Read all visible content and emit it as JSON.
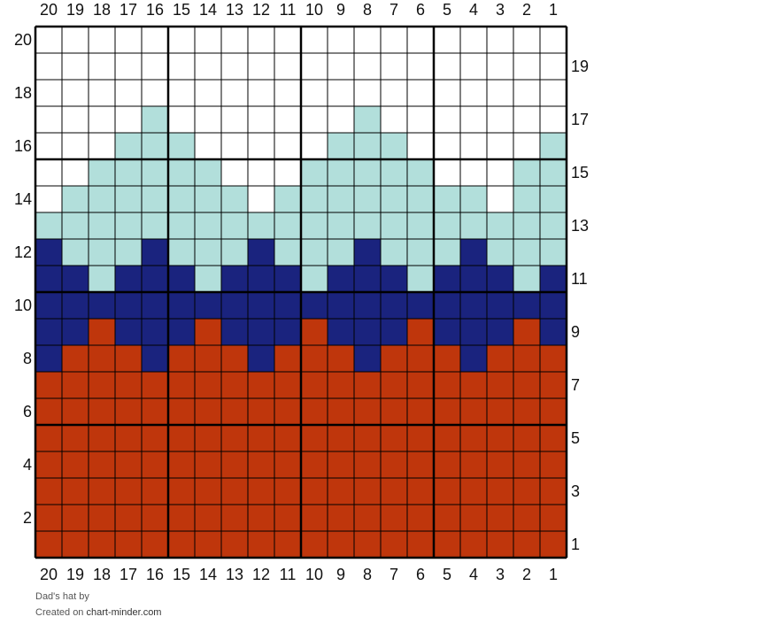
{
  "chart": {
    "columns": 20,
    "rows": 20,
    "colors": {
      "W": "#ffffff",
      "L": "#b2dfdb",
      "N": "#1a237e",
      "R": "#bf360c",
      "grid": "#000000"
    },
    "rows_from_top": [
      "WWWWWWWWWWWWWWWWWWWW",
      "WWWWWWWWWWWWWWWWWWWW",
      "WWWWWWWWWWWWWWWWWWWW",
      "WWWWLWWWWWWWLWWWWWWW",
      "WWWLLLWWWWWLLLWWWWWL",
      "WWLLLLLWWWLLLLLWWWLL",
      "WLLLLLLLWLLLLLLLLWLL",
      "LLLLLLLLLLLLLLLLLLLL",
      "NLLLNLLLNLLLNLLLNLLL",
      "NNLNNNLNNNLNNNLNNNLN",
      "NNNNNNNNNNNNNNNNNNNN",
      "NNRNNNRNNNRNNNRNNNRN",
      "NRRRNRRRNRRRNRRRNRRR",
      "RRRRRRRRRRRRRRRRRRRR",
      "RRRRRRRRRRRRRRRRRRRR",
      "RRRRRRRRRRRRRRRRRRRR",
      "RRRRRRRRRRRRRRRRRRRR",
      "RRRRRRRRRRRRRRRRRRRR",
      "RRRRRRRRRRRRRRRRRRRR",
      "RRRRRRRRRRRRRRRRRRRR"
    ],
    "column_labels": [
      "20",
      "19",
      "18",
      "17",
      "16",
      "15",
      "14",
      "13",
      "12",
      "11",
      "10",
      "9",
      "8",
      "7",
      "6",
      "5",
      "4",
      "3",
      "2",
      "1"
    ],
    "left_row_labels": [
      "20",
      "18",
      "16",
      "14",
      "12",
      "10",
      "8",
      "6",
      "4",
      "2"
    ],
    "right_row_labels": [
      "19",
      "17",
      "15",
      "13",
      "11",
      "9",
      "7",
      "5",
      "3",
      "1"
    ]
  },
  "footer": {
    "title": "Dad's hat",
    "by": "by",
    "created_on": "Created on",
    "site": "chart-minder.com"
  }
}
